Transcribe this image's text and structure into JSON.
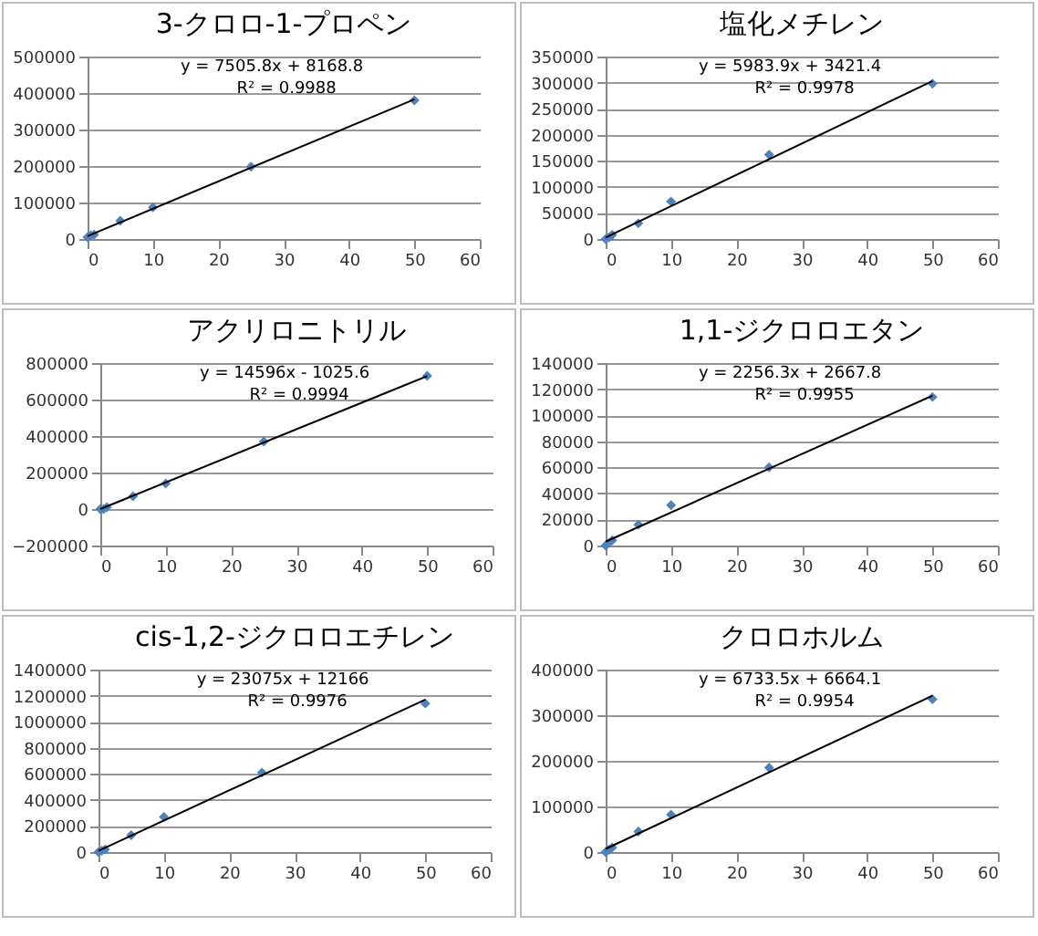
{
  "chart_data": [
    {
      "type": "scatter",
      "title": "3-クロロ-1-プロペン",
      "grid": "y",
      "xlim": [
        0,
        60
      ],
      "xticks": [
        0,
        10,
        20,
        30,
        40,
        50,
        60
      ],
      "ylim": [
        0,
        500000
      ],
      "yticks": [
        0,
        100000,
        200000,
        300000,
        400000,
        500000
      ],
      "annotations": [
        "y = 7505.8x + 8168.8",
        "R² = 0.9988"
      ],
      "series": [
        {
          "marker": "diamond",
          "color": "#4f81bd",
          "x": [
            0,
            0.5,
            1,
            5,
            10,
            25,
            50
          ],
          "values": [
            5000,
            10000,
            12000,
            50000,
            87000,
            198000,
            380000
          ]
        },
        {
          "type": "line",
          "color": "#000000",
          "x": [
            0,
            50
          ],
          "values": [
            8000,
            383000
          ]
        }
      ]
    },
    {
      "type": "scatter",
      "title": "塩化メチレン",
      "grid": "y",
      "xlim": [
        0,
        60
      ],
      "xticks": [
        0,
        10,
        20,
        30,
        40,
        50,
        60
      ],
      "ylim": [
        0,
        350000
      ],
      "yticks": [
        0,
        50000,
        100000,
        150000,
        200000,
        250000,
        300000,
        350000
      ],
      "annotations": [
        "y = 5983.9x + 3421.4",
        "R² = 0.9978"
      ],
      "series": [
        {
          "marker": "diamond",
          "color": "#4f81bd",
          "x": [
            0,
            0.5,
            1,
            5,
            10,
            25,
            50
          ],
          "values": [
            0,
            3000,
            8000,
            30000,
            72000,
            162000,
            298000
          ]
        },
        {
          "type": "line",
          "color": "#000000",
          "x": [
            0,
            50
          ],
          "values": [
            3000,
            303000
          ]
        }
      ]
    },
    {
      "type": "scatter",
      "title": "アクリロニトリル",
      "grid": "y",
      "xlim": [
        0,
        60
      ],
      "xticks": [
        0,
        10,
        20,
        30,
        40,
        50,
        60
      ],
      "ylim": [
        -200000,
        800000
      ],
      "yticks": [
        -200000,
        0,
        200000,
        400000,
        600000,
        800000
      ],
      "annotations": [
        "y = 14596x - 1025.6",
        "R² = 0.9994"
      ],
      "series": [
        {
          "marker": "diamond",
          "color": "#4f81bd",
          "x": [
            0,
            0.5,
            1,
            5,
            10,
            25,
            50
          ],
          "values": [
            0,
            0,
            10000,
            70000,
            140000,
            370000,
            730000
          ]
        },
        {
          "type": "line",
          "color": "#000000",
          "x": [
            0,
            50
          ],
          "values": [
            0,
            729000
          ]
        }
      ]
    },
    {
      "type": "scatter",
      "title": "1,1-ジクロロエタン",
      "grid": "y",
      "xlim": [
        0,
        60
      ],
      "xticks": [
        0,
        10,
        20,
        30,
        40,
        50,
        60
      ],
      "ylim": [
        0,
        140000
      ],
      "yticks": [
        0,
        20000,
        40000,
        60000,
        80000,
        100000,
        120000,
        140000
      ],
      "annotations": [
        "y = 2256.3x + 2667.8",
        "R² = 0.9955"
      ],
      "series": [
        {
          "marker": "diamond",
          "color": "#4f81bd",
          "x": [
            0,
            0.5,
            1,
            5,
            10,
            25,
            50
          ],
          "values": [
            0,
            2000,
            4000,
            16000,
            31000,
            60000,
            114000
          ]
        },
        {
          "type": "line",
          "color": "#000000",
          "x": [
            0,
            50
          ],
          "values": [
            3000,
            115000
          ]
        }
      ]
    },
    {
      "type": "scatter",
      "title": "cis-1,2-ジクロロエチレン",
      "grid": "y",
      "xlim": [
        0,
        60
      ],
      "xticks": [
        0,
        10,
        20,
        30,
        40,
        50,
        60
      ],
      "ylim": [
        0,
        1400000
      ],
      "yticks": [
        0,
        200000,
        400000,
        600000,
        800000,
        1000000,
        1200000,
        1400000
      ],
      "annotations": [
        "y = 23075x + 12166",
        "R² = 0.9976"
      ],
      "series": [
        {
          "marker": "diamond",
          "color": "#4f81bd",
          "x": [
            0,
            0.5,
            1,
            5,
            10,
            25,
            50
          ],
          "values": [
            0,
            10000,
            20000,
            130000,
            270000,
            610000,
            1140000
          ]
        },
        {
          "type": "line",
          "color": "#000000",
          "x": [
            0,
            50
          ],
          "values": [
            10000,
            1170000
          ]
        }
      ]
    },
    {
      "type": "scatter",
      "title": "クロロホルム",
      "grid": "y",
      "xlim": [
        0,
        60
      ],
      "xticks": [
        0,
        10,
        20,
        30,
        40,
        50,
        60
      ],
      "ylim": [
        0,
        400000
      ],
      "yticks": [
        0,
        100000,
        200000,
        300000,
        400000
      ],
      "annotations": [
        "y = 6733.5x + 6664.1",
        "R² = 0.9954"
      ],
      "series": [
        {
          "marker": "diamond",
          "color": "#4f81bd",
          "x": [
            0,
            0.5,
            1,
            5,
            10,
            25,
            50
          ],
          "values": [
            0,
            5000,
            10000,
            45000,
            82000,
            185000,
            335000
          ]
        },
        {
          "type": "line",
          "color": "#000000",
          "x": [
            0,
            50
          ],
          "values": [
            7000,
            343000
          ]
        }
      ]
    }
  ]
}
